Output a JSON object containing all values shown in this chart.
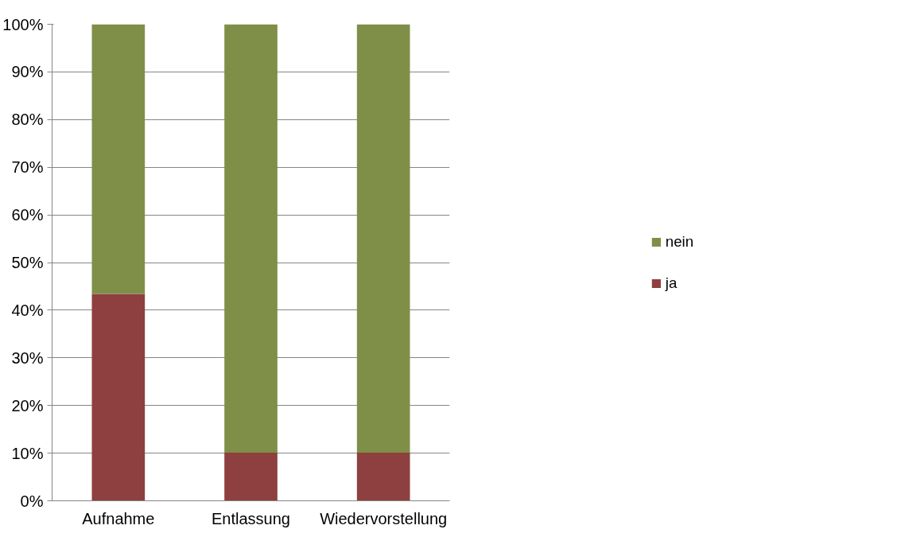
{
  "chart_data": {
    "type": "bar",
    "stacked": true,
    "categories": [
      "Aufnahme",
      "Entlassung",
      "Wiedervorstellung"
    ],
    "series": [
      {
        "name": "ja",
        "color": "#8e3f3f",
        "values": [
          43.4,
          10.1,
          10.1
        ]
      },
      {
        "name": "nein",
        "color": "#7f8f47",
        "values": [
          56.6,
          89.9,
          89.9
        ]
      }
    ],
    "ylim": [
      0,
      100
    ],
    "yticks": [
      {
        "value": 0,
        "label": "0%"
      },
      {
        "value": 10,
        "label": "10%"
      },
      {
        "value": 20,
        "label": "20%"
      },
      {
        "value": 30,
        "label": "30%"
      },
      {
        "value": 40,
        "label": "40%"
      },
      {
        "value": 50,
        "label": "50%"
      },
      {
        "value": 60,
        "label": "60%"
      },
      {
        "value": 70,
        "label": "70%"
      },
      {
        "value": 80,
        "label": "80%"
      },
      {
        "value": 90,
        "label": "90%"
      },
      {
        "value": 100,
        "label": "100%"
      }
    ],
    "grid": "y",
    "legend": "right"
  }
}
